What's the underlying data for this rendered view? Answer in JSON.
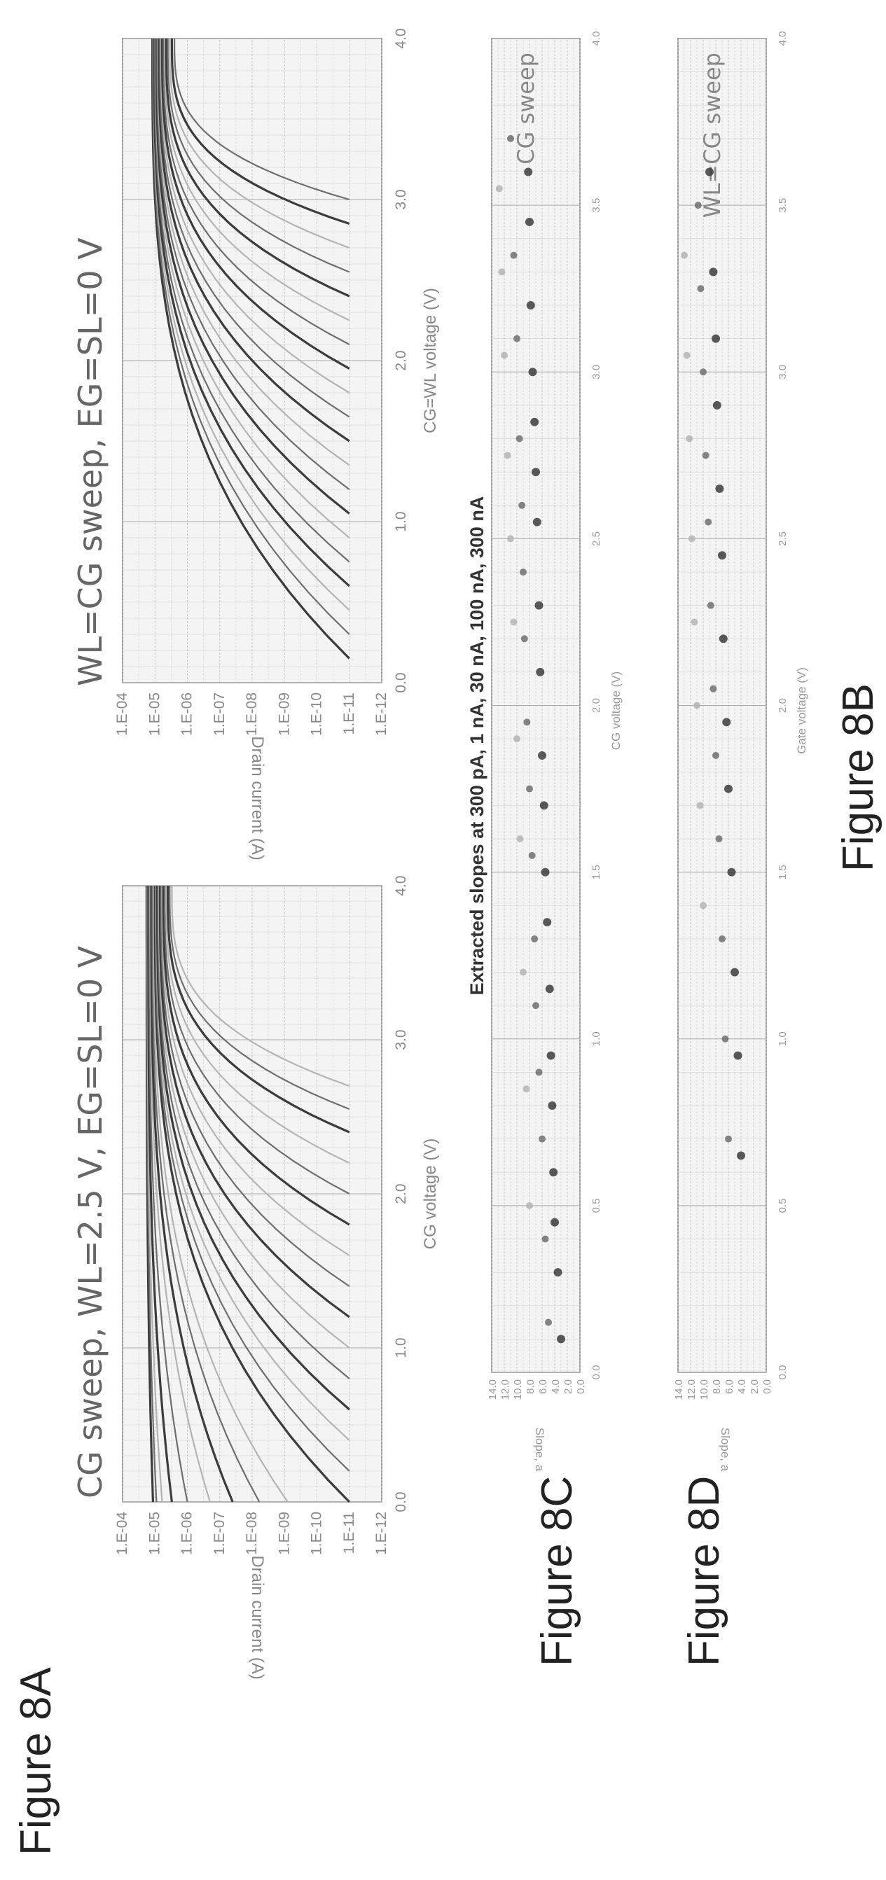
{
  "figure_labels": {
    "a": "Figure 8A",
    "b": "Figure 8B",
    "c": "Figure 8C",
    "d": "Figure 8D"
  },
  "colors": {
    "dark_curve": "#3c3c3c",
    "mid_curve": "#6e6e6e",
    "light_curve": "#b4b4b4",
    "grid": "#d9d9d9",
    "frame": "#777777"
  },
  "chart_data": [
    {
      "id": "8A",
      "type": "line",
      "title": "CG sweep, WL=2.5 V, EG=SL=0 V",
      "xlabel": "CG voltage (V)",
      "ylabel": "Drain current (A)",
      "log_y": true,
      "xlim": [
        0,
        4
      ],
      "ylim": [
        1e-12,
        0.0001
      ],
      "x_ticks": [
        "0.0",
        "1.0",
        "2.0",
        "3.0",
        "4.0"
      ],
      "y_ticks": [
        "1.E-04",
        "1.E-05",
        "1.E-06",
        "1.E-07",
        "1.E-08",
        "1.E-09",
        "1.E-10",
        "1.E-11",
        "1.E-12"
      ],
      "grid": true,
      "series": [
        {
          "x": [
            0.0,
            4.0
          ],
          "y": [
            1.15e-05,
            1.8e-05
          ]
        },
        {
          "x": [
            0.0,
            4.0
          ],
          "y": [
            9e-06,
            1.75e-05
          ]
        },
        {
          "x": [
            0.0,
            4.0
          ],
          "y": [
            6e-06,
            1.7e-05
          ]
        },
        {
          "x": [
            0.0,
            4.0
          ],
          "y": [
            3e-06,
            1.6e-05
          ]
        },
        {
          "x": [
            0.0,
            4.0
          ],
          "y": [
            1e-06,
            1.5e-05
          ]
        },
        {
          "x": [
            0.0,
            4.0
          ],
          "y": [
            2e-07,
            1.4e-05
          ]
        },
        {
          "x": [
            0.0,
            4.0
          ],
          "y": [
            4e-08,
            1.3e-05
          ]
        },
        {
          "x": [
            0.0,
            4.0
          ],
          "y": [
            6e-09,
            1.2e-05
          ]
        },
        {
          "x": [
            0.0,
            4.0
          ],
          "y": [
            8e-10,
            1.1e-05
          ]
        },
        {
          "x": [
            0.0,
            4.0
          ],
          "y": [
            1e-11,
            1e-05
          ]
        },
        {
          "x": [
            0.2,
            4.0
          ],
          "y": [
            1e-11,
            9.5e-06
          ]
        },
        {
          "x": [
            0.4,
            4.0
          ],
          "y": [
            1e-11,
            9e-06
          ]
        },
        {
          "x": [
            0.6,
            4.0
          ],
          "y": [
            1e-11,
            8.5e-06
          ]
        },
        {
          "x": [
            0.8,
            4.0
          ],
          "y": [
            1e-11,
            8e-06
          ]
        },
        {
          "x": [
            1.0,
            4.0
          ],
          "y": [
            1e-11,
            7.5e-06
          ]
        },
        {
          "x": [
            1.2,
            4.0
          ],
          "y": [
            1e-11,
            7e-06
          ]
        },
        {
          "x": [
            1.4,
            4.0
          ],
          "y": [
            1e-11,
            6.5e-06
          ]
        },
        {
          "x": [
            1.6,
            4.0
          ],
          "y": [
            1e-11,
            6e-06
          ]
        },
        {
          "x": [
            1.8,
            4.0
          ],
          "y": [
            1e-11,
            5.5e-06
          ]
        },
        {
          "x": [
            2.0,
            4.0
          ],
          "y": [
            1e-11,
            5e-06
          ]
        },
        {
          "x": [
            2.2,
            4.0
          ],
          "y": [
            1e-11,
            4.5e-06
          ]
        },
        {
          "x": [
            2.4,
            4.0
          ],
          "y": [
            1e-11,
            4e-06
          ]
        },
        {
          "x": [
            2.55,
            4.0
          ],
          "y": [
            1e-11,
            3.5e-06
          ]
        },
        {
          "x": [
            2.7,
            4.0
          ],
          "y": [
            1e-11,
            3e-06
          ]
        }
      ]
    },
    {
      "id": "8B",
      "type": "line",
      "title": "WL=CG sweep, EG=SL=0 V",
      "xlabel": "CG=WL voltage (V)",
      "ylabel": "Drain current (A)",
      "log_y": true,
      "xlim": [
        0,
        4
      ],
      "ylim": [
        1e-12,
        0.0001
      ],
      "x_ticks": [
        "0.0",
        "1.0",
        "2.0",
        "3.0",
        "4.0"
      ],
      "y_ticks": [
        "1.E-04",
        "1.E-05",
        "1.E-06",
        "1.E-07",
        "1.E-08",
        "1.E-09",
        "1.E-10",
        "1.E-11",
        "1.E-12"
      ],
      "grid": true,
      "series": [
        {
          "x": [
            0.15,
            4.0
          ],
          "y": [
            1e-11,
            1.2e-05
          ]
        },
        {
          "x": [
            0.3,
            4.0
          ],
          "y": [
            1e-11,
            1.15e-05
          ]
        },
        {
          "x": [
            0.45,
            4.0
          ],
          "y": [
            1e-11,
            1.1e-05
          ]
        },
        {
          "x": [
            0.6,
            4.0
          ],
          "y": [
            1e-11,
            1.05e-05
          ]
        },
        {
          "x": [
            0.75,
            4.0
          ],
          "y": [
            1e-11,
            1e-05
          ]
        },
        {
          "x": [
            0.9,
            4.0
          ],
          "y": [
            1e-11,
            9.5e-06
          ]
        },
        {
          "x": [
            1.05,
            4.0
          ],
          "y": [
            1e-11,
            9e-06
          ]
        },
        {
          "x": [
            1.2,
            4.0
          ],
          "y": [
            1e-11,
            8.5e-06
          ]
        },
        {
          "x": [
            1.35,
            4.0
          ],
          "y": [
            1e-11,
            8e-06
          ]
        },
        {
          "x": [
            1.5,
            4.0
          ],
          "y": [
            1e-11,
            7.5e-06
          ]
        },
        {
          "x": [
            1.65,
            4.0
          ],
          "y": [
            1e-11,
            7e-06
          ]
        },
        {
          "x": [
            1.8,
            4.0
          ],
          "y": [
            1e-11,
            6.5e-06
          ]
        },
        {
          "x": [
            1.95,
            4.0
          ],
          "y": [
            1e-11,
            6e-06
          ]
        },
        {
          "x": [
            2.1,
            4.0
          ],
          "y": [
            1e-11,
            5.5e-06
          ]
        },
        {
          "x": [
            2.25,
            4.0
          ],
          "y": [
            1e-11,
            5e-06
          ]
        },
        {
          "x": [
            2.4,
            4.0
          ],
          "y": [
            1e-11,
            4.5e-06
          ]
        },
        {
          "x": [
            2.55,
            4.0
          ],
          "y": [
            1e-11,
            4e-06
          ]
        },
        {
          "x": [
            2.7,
            4.0
          ],
          "y": [
            1e-11,
            3.5e-06
          ]
        },
        {
          "x": [
            2.85,
            4.0
          ],
          "y": [
            1e-11,
            3e-06
          ]
        },
        {
          "x": [
            3.0,
            4.0
          ],
          "y": [
            1e-11,
            2.5e-06
          ]
        }
      ]
    },
    {
      "id": "8C",
      "type": "scatter",
      "title": "Extracted slopes at 300 pA, 1 nA, 30 nA, 100 nA, 300 nA",
      "xlabel": "CG voltage (V)",
      "ylabel": "Slope, a",
      "xlim": [
        0,
        4
      ],
      "ylim": [
        0,
        14
      ],
      "x_ticks": [
        "0.0",
        "0.5",
        "1.0",
        "1.5",
        "2.0",
        "2.5",
        "3.0",
        "3.5",
        "4.0"
      ],
      "y_ticks": [
        "14.0",
        "12.0",
        "10.0",
        "8.0",
        "6.0",
        "4.0",
        "2.0",
        "0.0"
      ],
      "legend": "CG sweep",
      "legend_position": "top-right",
      "grid": true,
      "series": [
        {
          "x": [
            0.1,
            0.3,
            0.45,
            0.6,
            0.8,
            0.95,
            1.15,
            1.35,
            1.5,
            1.7,
            1.85,
            2.1,
            2.3,
            2.55,
            2.7,
            2.85,
            3.0,
            3.2,
            3.45,
            3.6
          ],
          "y": [
            3,
            3.5,
            4,
            4.2,
            4.4,
            4.6,
            4.8,
            5.2,
            5.5,
            5.7,
            6,
            6.3,
            6.5,
            6.8,
            7,
            7.2,
            7.5,
            7.8,
            8,
            8.2
          ]
        },
        {
          "x": [
            0.15,
            0.4,
            0.7,
            0.9,
            1.1,
            1.3,
            1.55,
            1.75,
            1.95,
            2.2,
            2.4,
            2.6,
            2.8,
            3.1,
            3.35,
            3.7
          ],
          "y": [
            5,
            5.5,
            6,
            6.5,
            7,
            7.2,
            7.6,
            8,
            8.4,
            8.8,
            9,
            9.2,
            9.6,
            10,
            10.5,
            11
          ]
        },
        {
          "x": [
            0.5,
            0.85,
            1.2,
            1.6,
            1.9,
            2.25,
            2.5,
            2.75,
            3.05,
            3.3,
            3.55
          ],
          "y": [
            8,
            8.5,
            9,
            9.5,
            10,
            10.5,
            11,
            11.5,
            12,
            12.4,
            12.8
          ]
        }
      ]
    },
    {
      "id": "8D",
      "type": "scatter",
      "title": "",
      "xlabel": "Gate voltage (V)",
      "ylabel": "Slope, a",
      "xlim": [
        0,
        4
      ],
      "ylim": [
        0,
        14
      ],
      "x_ticks": [
        "0.0",
        "0.5",
        "1.0",
        "1.5",
        "2.0",
        "2.5",
        "3.0",
        "3.5",
        "4.0"
      ],
      "y_ticks": [
        "14.0",
        "12.0",
        "10.0",
        "8.0",
        "6.0",
        "4.0",
        "2.0",
        "0.0"
      ],
      "legend": "WL=CG sweep",
      "legend_position": "top-right",
      "grid": true,
      "series": [
        {
          "x": [
            0.65,
            0.95,
            1.2,
            1.5,
            1.75,
            1.95,
            2.2,
            2.45,
            2.65,
            2.9,
            3.1,
            3.3,
            3.6
          ],
          "y": [
            4,
            4.5,
            5,
            5.5,
            6,
            6.3,
            6.8,
            7,
            7.4,
            7.8,
            8,
            8.4,
            9
          ]
        },
        {
          "x": [
            0.7,
            1.0,
            1.3,
            1.6,
            1.85,
            2.05,
            2.3,
            2.55,
            2.75,
            3.0,
            3.25,
            3.5
          ],
          "y": [
            6,
            6.5,
            7,
            7.5,
            8,
            8.4,
            8.8,
            9.2,
            9.6,
            10,
            10.4,
            10.8
          ]
        },
        {
          "x": [
            1.4,
            1.7,
            2.0,
            2.25,
            2.5,
            2.8,
            3.05,
            3.35
          ],
          "y": [
            10,
            10.5,
            11,
            11.4,
            11.8,
            12.2,
            12.6,
            13
          ]
        }
      ]
    }
  ]
}
